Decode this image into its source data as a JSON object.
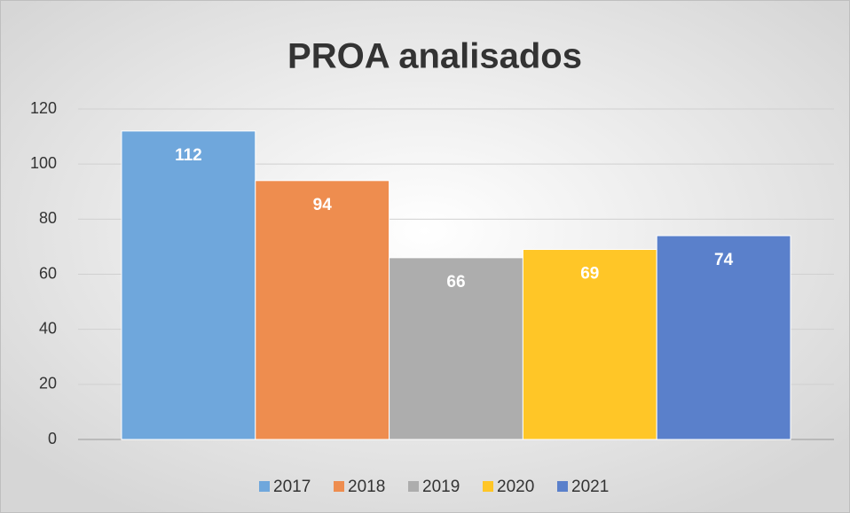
{
  "chart_data": {
    "type": "bar",
    "title": "PROA analisados",
    "categories": [
      null
    ],
    "series": [
      {
        "name": "2017",
        "color": "#6fa7dc",
        "values": [
          112
        ]
      },
      {
        "name": "2018",
        "color": "#ee8d4f",
        "values": [
          94
        ]
      },
      {
        "name": "2019",
        "color": "#adadad",
        "values": [
          66
        ]
      },
      {
        "name": "2020",
        "color": "#ffc627",
        "values": [
          69
        ]
      },
      {
        "name": "2021",
        "color": "#5a80cb",
        "values": [
          74
        ]
      }
    ],
    "ylim": [
      0,
      120
    ],
    "yticks": [
      0,
      20,
      40,
      60,
      80,
      100,
      120
    ],
    "grid": true,
    "legend": "bottom"
  }
}
